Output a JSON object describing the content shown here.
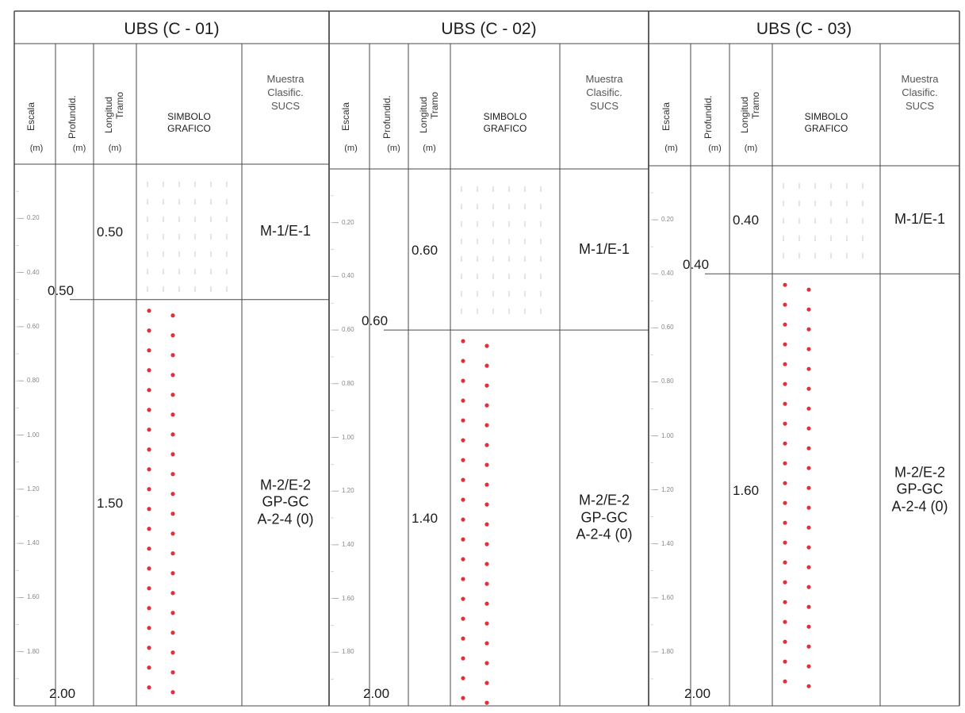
{
  "columns_header": {
    "escala": "Escala",
    "profundidad": "Profundid.",
    "longitud_tramo": "Longitud Tramo",
    "unit": "(m)",
    "simbolo": [
      "SIMBOLO",
      "GRAFICO"
    ],
    "muestra": [
      "Muestra",
      "Clasific.",
      "SUCS"
    ]
  },
  "logs": [
    {
      "title": "UBS (C - 01)",
      "layer1": {
        "tramo": "0.50",
        "depth": "0.50",
        "sample": [
          "M-1/E-1"
        ]
      },
      "layer2": {
        "tramo": "1.50",
        "depth": "2.00",
        "sample": [
          "M-2/E-2",
          "GP-GC",
          "A-2-4 (0)"
        ]
      },
      "ticks": [
        "0.20",
        "0.40",
        "0.60",
        "0.80",
        "1.00",
        "1.20",
        "1.40",
        "1.60",
        "1.80"
      ]
    },
    {
      "title": "UBS (C - 02)",
      "layer1": {
        "tramo": "0.60",
        "depth": "0.60",
        "sample": [
          "M-1/E-1"
        ]
      },
      "layer2": {
        "tramo": "1.40",
        "depth": "2.00",
        "sample": [
          "M-2/E-2",
          "GP-GC",
          "A-2-4 (0)"
        ]
      },
      "ticks": [
        "0.20",
        "0.40",
        "0.60",
        "0.80",
        "1.00",
        "1.20",
        "1.40",
        "1.60",
        "1.80"
      ]
    },
    {
      "title": "UBS (C - 03)",
      "layer1": {
        "tramo": "0.40",
        "depth": "0.40",
        "sample": [
          "M-1/E-1"
        ]
      },
      "layer2": {
        "tramo": "1.60",
        "depth": "2.00",
        "sample": [
          "M-2/E-2",
          "GP-GC",
          "A-2-4 (0)"
        ]
      },
      "ticks": [
        "0.20",
        "0.40",
        "0.60",
        "0.80",
        "1.00",
        "1.20",
        "1.40",
        "1.60",
        "1.80"
      ]
    }
  ],
  "colors": {
    "grid": "#4a4a4a",
    "gravel_dot": "#e0303c",
    "fill_dot": "#c8c8c8"
  }
}
